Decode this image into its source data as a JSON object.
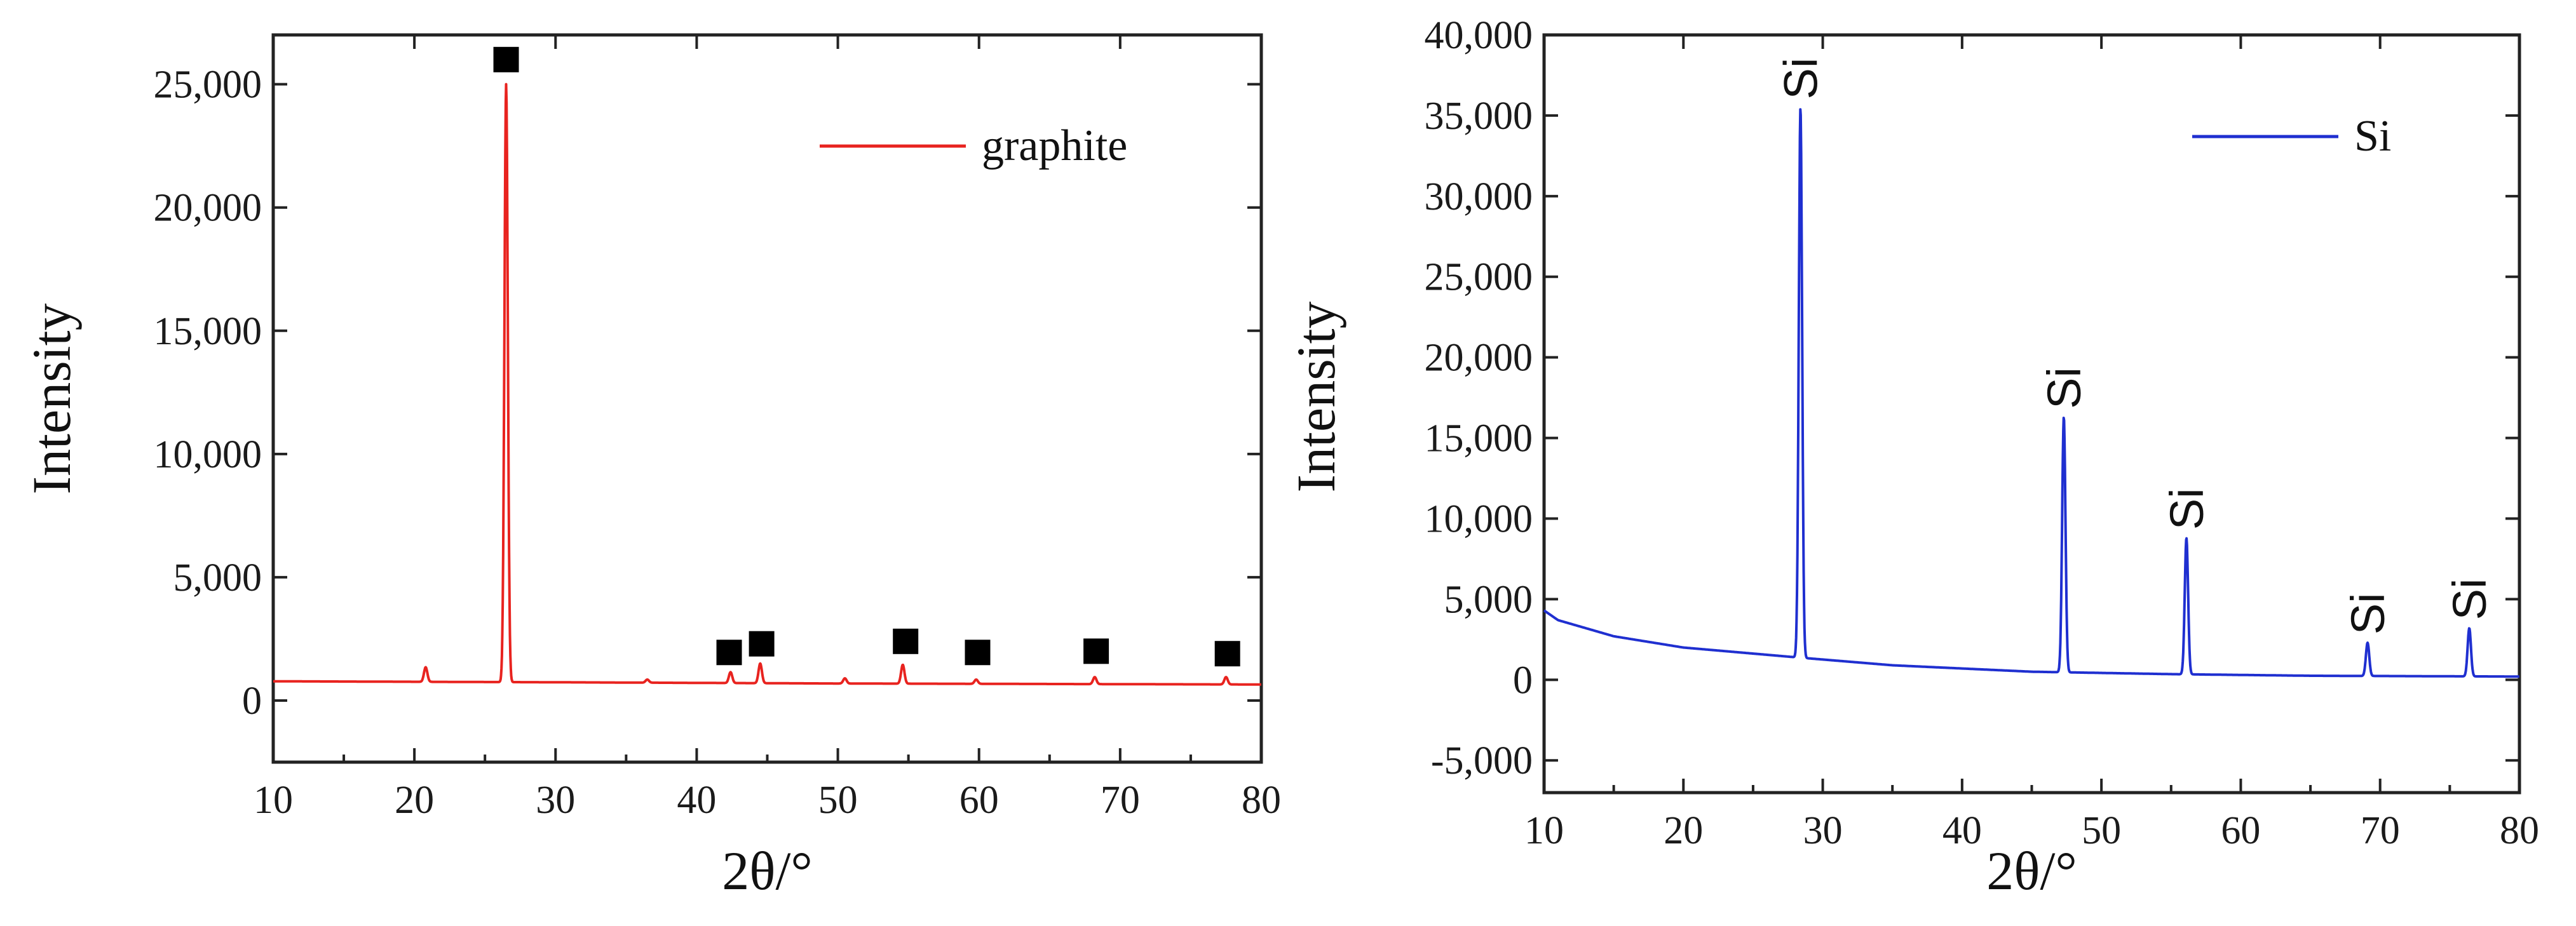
{
  "chart_data": [
    {
      "type": "line",
      "title": "",
      "xlabel": "2θ/°",
      "ylabel": "Intensity",
      "xlim": [
        10,
        80
      ],
      "ylim": [
        -2500,
        27000
      ],
      "xticks": [
        10,
        20,
        30,
        40,
        50,
        60,
        70,
        80
      ],
      "yticks": [
        0,
        5000,
        10000,
        15000,
        20000,
        25000
      ],
      "xtick_labels": [
        "10",
        "20",
        "30",
        "40",
        "50",
        "60",
        "70",
        "80"
      ],
      "ytick_labels": [
        "0",
        "5,000",
        "10,000",
        "15,000",
        "20,000",
        "25,000"
      ],
      "legend_position": "top-right",
      "grid": false,
      "series": [
        {
          "name": "graphite",
          "color": "#e8231f",
          "baseline": [
            [
              10,
              780
            ],
            [
              30,
              740
            ],
            [
              50,
              690
            ],
            [
              80,
              650
            ]
          ],
          "peaks": [
            {
              "x": 20.8,
              "y": 1350
            },
            {
              "x": 26.5,
              "y": 25000
            },
            {
              "x": 36.5,
              "y": 850
            },
            {
              "x": 42.4,
              "y": 1150
            },
            {
              "x": 44.5,
              "y": 1500
            },
            {
              "x": 50.5,
              "y": 900
            },
            {
              "x": 54.6,
              "y": 1450
            },
            {
              "x": 59.8,
              "y": 850
            },
            {
              "x": 68.2,
              "y": 950
            },
            {
              "x": 77.5,
              "y": 950
            }
          ]
        }
      ],
      "markers": [
        {
          "x": 26.5,
          "y": 26000
        },
        {
          "x": 42.3,
          "y": 1950
        },
        {
          "x": 44.6,
          "y": 2300
        },
        {
          "x": 54.8,
          "y": 2400
        },
        {
          "x": 59.9,
          "y": 1950
        },
        {
          "x": 68.3,
          "y": 2000
        },
        {
          "x": 77.6,
          "y": 1900
        }
      ]
    },
    {
      "type": "line",
      "title": "",
      "xlabel": "2θ/°",
      "ylabel": "Intensity",
      "xlim": [
        10,
        80
      ],
      "ylim": [
        -7000,
        40000
      ],
      "xticks": [
        10,
        20,
        30,
        40,
        50,
        60,
        70,
        80
      ],
      "yticks": [
        -5000,
        0,
        5000,
        10000,
        15000,
        20000,
        25000,
        30000,
        35000,
        40000
      ],
      "xtick_labels": [
        "10",
        "20",
        "30",
        "40",
        "50",
        "60",
        "70",
        "80"
      ],
      "ytick_labels": [
        "-5,000",
        "0",
        "5,000",
        "10,000",
        "15,000",
        "20,000",
        "25,000",
        "30,000",
        "35,000",
        "40,000"
      ],
      "legend_position": "top-right",
      "grid": false,
      "series": [
        {
          "name": "Si",
          "color": "#1f2fd0",
          "baseline": [
            [
              10,
              4300
            ],
            [
              11,
              3700
            ],
            [
              15,
              2700
            ],
            [
              20,
              2000
            ],
            [
              28,
              1400
            ],
            [
              35,
              900
            ],
            [
              45,
              500
            ],
            [
              55,
              350
            ],
            [
              65,
              250
            ],
            [
              80,
              200
            ]
          ],
          "peaks": [
            {
              "x": 28.4,
              "y": 35500
            },
            {
              "x": 47.3,
              "y": 16300
            },
            {
              "x": 56.1,
              "y": 8800
            },
            {
              "x": 69.1,
              "y": 2300
            },
            {
              "x": 76.4,
              "y": 3200
            }
          ]
        }
      ],
      "annotations": [
        {
          "text": "Si",
          "x": 28.4,
          "y": 36000
        },
        {
          "text": "Si",
          "x": 47.3,
          "y": 16800
        },
        {
          "text": "Si",
          "x": 56.1,
          "y": 9300
        },
        {
          "text": "Si",
          "x": 69.1,
          "y": 2800
        },
        {
          "text": "Si",
          "x": 76.4,
          "y": 3700
        }
      ]
    }
  ]
}
